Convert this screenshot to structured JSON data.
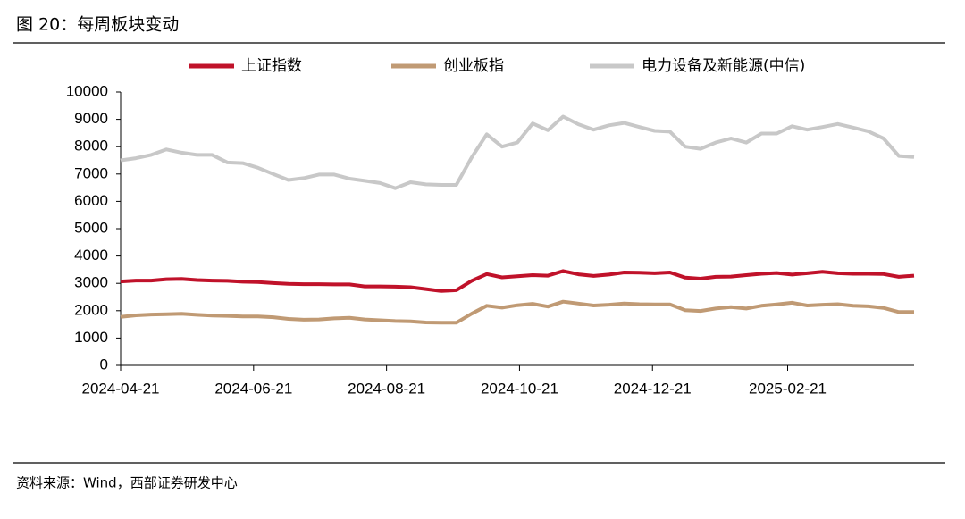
{
  "chart_data": {
    "type": "line",
    "title": "图 20：每周板块变动",
    "source": "资料来源：Wind，西部证券研发中心",
    "x": [
      "2024-04-21",
      "2024-04-28",
      "2024-05-05",
      "2024-05-12",
      "2024-05-19",
      "2024-05-26",
      "2024-06-02",
      "2024-06-09",
      "2024-06-16",
      "2024-06-23",
      "2024-06-30",
      "2024-07-07",
      "2024-07-14",
      "2024-07-21",
      "2024-07-28",
      "2024-08-04",
      "2024-08-11",
      "2024-08-18",
      "2024-08-25",
      "2024-09-01",
      "2024-09-08",
      "2024-09-15",
      "2024-09-22",
      "2024-09-29",
      "2024-10-06",
      "2024-10-13",
      "2024-10-20",
      "2024-10-27",
      "2024-11-03",
      "2024-11-10",
      "2024-11-17",
      "2024-11-24",
      "2024-12-01",
      "2024-12-08",
      "2024-12-15",
      "2024-12-22",
      "2024-12-29",
      "2025-01-05",
      "2025-01-12",
      "2025-01-19",
      "2025-01-26",
      "2025-02-02",
      "2025-02-09",
      "2025-02-16",
      "2025-02-23",
      "2025-03-02",
      "2025-03-09",
      "2025-03-16",
      "2025-03-23",
      "2025-03-30",
      "2025-04-06",
      "2025-04-13",
      "2025-04-20"
    ],
    "series": [
      {
        "name": "上证指数",
        "color": "#c0122a",
        "values": [
          3070,
          3100,
          3100,
          3150,
          3160,
          3120,
          3100,
          3090,
          3060,
          3050,
          3010,
          2980,
          2970,
          2970,
          2960,
          2960,
          2890,
          2890,
          2880,
          2860,
          2790,
          2720,
          2750,
          3090,
          3340,
          3220,
          3260,
          3300,
          3280,
          3450,
          3330,
          3270,
          3320,
          3400,
          3390,
          3370,
          3400,
          3210,
          3170,
          3240,
          3250,
          3300,
          3350,
          3380,
          3320,
          3370,
          3420,
          3370,
          3350,
          3350,
          3340,
          3240,
          3280
        ]
      },
      {
        "name": "创业板指",
        "color": "#c09a74",
        "values": [
          1770,
          1830,
          1860,
          1870,
          1890,
          1850,
          1820,
          1810,
          1790,
          1790,
          1760,
          1700,
          1670,
          1680,
          1720,
          1740,
          1680,
          1650,
          1620,
          1610,
          1570,
          1560,
          1560,
          1890,
          2180,
          2110,
          2200,
          2250,
          2150,
          2330,
          2260,
          2190,
          2220,
          2260,
          2240,
          2230,
          2230,
          2020,
          1990,
          2080,
          2130,
          2080,
          2180,
          2230,
          2290,
          2190,
          2220,
          2240,
          2180,
          2160,
          2100,
          1950,
          1950
        ]
      },
      {
        "name": "电力设备及新能源(中信)",
        "color": "#c8c8c8",
        "values": [
          7500,
          7580,
          7700,
          7900,
          7780,
          7700,
          7700,
          7420,
          7400,
          7230,
          7000,
          6780,
          6850,
          6980,
          6980,
          6830,
          6750,
          6670,
          6480,
          6700,
          6620,
          6600,
          6600,
          7600,
          8450,
          8000,
          8150,
          8850,
          8600,
          9100,
          8820,
          8620,
          8780,
          8870,
          8720,
          8580,
          8550,
          8000,
          7920,
          8150,
          8300,
          8150,
          8480,
          8480,
          8750,
          8620,
          8720,
          8830,
          8700,
          8560,
          8300,
          7660,
          7620
        ]
      }
    ],
    "xlim": [
      "2024-04-21",
      "2025-04-20"
    ],
    "xticks": [
      "2024-04-21",
      "2024-06-21",
      "2024-08-21",
      "2024-10-21",
      "2024-12-21",
      "2025-02-21"
    ],
    "ylim": [
      0,
      10000
    ],
    "yticks": [
      0,
      1000,
      2000,
      3000,
      4000,
      5000,
      6000,
      7000,
      8000,
      9000,
      10000
    ],
    "legend": "top"
  }
}
